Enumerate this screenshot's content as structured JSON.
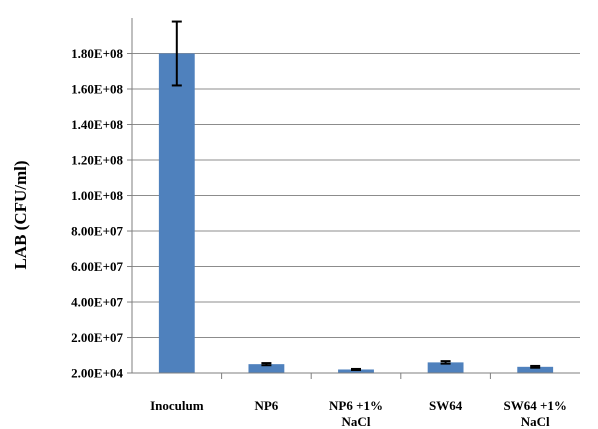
{
  "chart_data": {
    "type": "bar",
    "title": "",
    "xlabel": "",
    "ylabel": "LAB (CFU/ml)",
    "categories": [
      [
        "Inoculum"
      ],
      [
        "NP6"
      ],
      [
        "NP6 +1%",
        "NaCl"
      ],
      [
        "SW64"
      ],
      [
        "SW64 +1%",
        "NaCl"
      ]
    ],
    "values": [
      180000000,
      5000000,
      2000000,
      6000000,
      3500000
    ],
    "errors": [
      18000000,
      600000,
      300000,
      700000,
      500000
    ],
    "ylim": [
      20000,
      200000000
    ],
    "yticks": [
      20000,
      20000000,
      40000000,
      60000000,
      80000000,
      100000000,
      120000000,
      140000000,
      160000000,
      180000000
    ],
    "ytick_labels": [
      "2.00E+04",
      "2.00E+07",
      "4.00E+07",
      "6.00E+07",
      "8.00E+07",
      "1.00E+08",
      "1.20E+08",
      "1.40E+08",
      "1.60E+08",
      "1.80E+08"
    ],
    "grid": true,
    "legend": "none",
    "colors": {
      "bar": "#4f81bd",
      "grid": "#8c8c8c",
      "axis": "#7f7f7f",
      "error": "#000000"
    }
  }
}
